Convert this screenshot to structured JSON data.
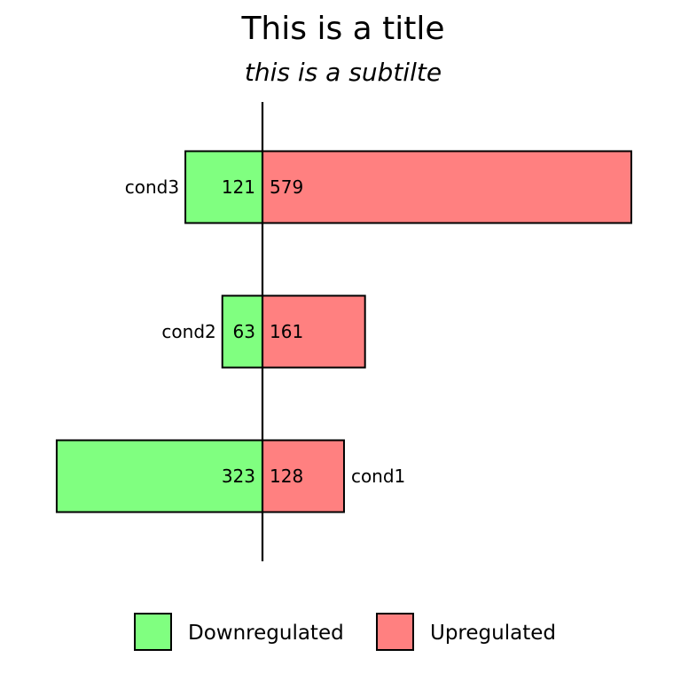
{
  "chart_data": {
    "type": "bar",
    "orientation": "horizontal-diverging",
    "title": "This is a title",
    "subtitle": "this is a subtilte",
    "categories": [
      "cond1",
      "cond2",
      "cond3"
    ],
    "series": [
      {
        "name": "Downregulated",
        "values": [
          323,
          63,
          121
        ],
        "color": "#80FF80",
        "direction": "left"
      },
      {
        "name": "Upregulated",
        "values": [
          128,
          161,
          579
        ],
        "color": "#FF8080",
        "direction": "right"
      }
    ],
    "xlim": [
      -323,
      579
    ],
    "grid": false,
    "legend_position": "bottom"
  }
}
